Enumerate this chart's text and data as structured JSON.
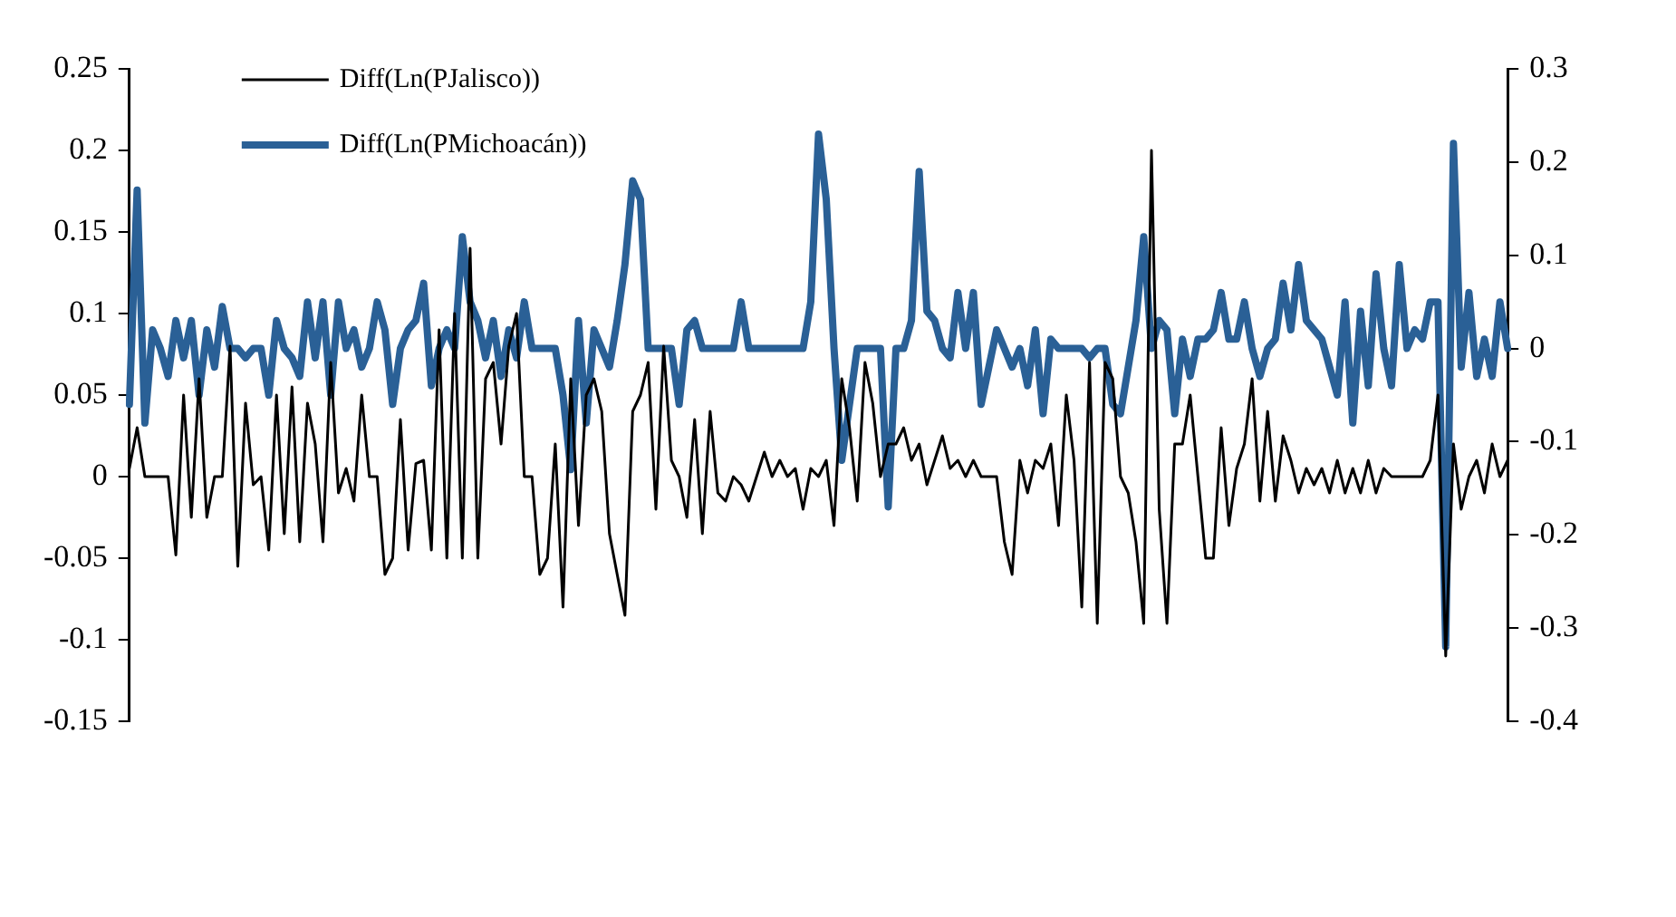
{
  "chart_data": {
    "type": "line",
    "categories": [
      null,
      null,
      null,
      null,
      null,
      null,
      null,
      null,
      null,
      null,
      null,
      null,
      null,
      null,
      null,
      null,
      null,
      null,
      null,
      null,
      null,
      null,
      null,
      null,
      null,
      null,
      null,
      null,
      null,
      null,
      null,
      null,
      null,
      null,
      null,
      null,
      null,
      null,
      null,
      null,
      null,
      null,
      null,
      null,
      null,
      null,
      null,
      null,
      null,
      null,
      null,
      null,
      null,
      null,
      null,
      null,
      null,
      null,
      null,
      null,
      null,
      null,
      null,
      null,
      null,
      null,
      null,
      null,
      null,
      null,
      null,
      null,
      null,
      null,
      null,
      null,
      null,
      null,
      null,
      null,
      null,
      null,
      null,
      null,
      null,
      null,
      null,
      null,
      null,
      null,
      null,
      null,
      null,
      null,
      null,
      null,
      null,
      null,
      null,
      null,
      null,
      null,
      null,
      null,
      null,
      null,
      null,
      null,
      null,
      null,
      null,
      null,
      null,
      null,
      null,
      null,
      null,
      null,
      null,
      null,
      null,
      null,
      null,
      null,
      null,
      null,
      null,
      null,
      null,
      null,
      null,
      null,
      null,
      null,
      null,
      null,
      null,
      null,
      null,
      null,
      null,
      null,
      null,
      null,
      null,
      null,
      null,
      null,
      null,
      null,
      null,
      null,
      null,
      null,
      null,
      null,
      null,
      null,
      null,
      null,
      null,
      null,
      null,
      null,
      null,
      null,
      null,
      null,
      null,
      null,
      null,
      null,
      null,
      null,
      null,
      null,
      null,
      null,
      null
    ],
    "series": [
      {
        "name": "Diff(Ln(PJalisco))",
        "color": "#000000",
        "axis": "y",
        "values": [
          0.005,
          0.03,
          0,
          0,
          0,
          0,
          -0.048,
          0.05,
          -0.025,
          0.06,
          -0.025,
          0,
          0,
          0.08,
          -0.055,
          0.045,
          -0.005,
          0,
          -0.045,
          0.05,
          -0.035,
          0.055,
          -0.04,
          0.045,
          0.02,
          -0.04,
          0.07,
          -0.01,
          0.005,
          -0.015,
          0.05,
          0,
          0,
          -0.06,
          -0.05,
          0.035,
          -0.045,
          0.008,
          0.01,
          -0.045,
          0.09,
          -0.05,
          0.1,
          -0.05,
          0.14,
          -0.05,
          0.06,
          0.07,
          0.02,
          0.08,
          0.1,
          0,
          0,
          -0.06,
          -0.05,
          0.02,
          -0.08,
          0.06,
          -0.03,
          0.05,
          0.06,
          0.04,
          -0.035,
          -0.06,
          -0.085,
          0.04,
          0.05,
          0.07,
          -0.02,
          0.08,
          0.01,
          0,
          -0.025,
          0.035,
          -0.035,
          0.04,
          -0.01,
          -0.015,
          0,
          -0.005,
          -0.015,
          0,
          0.015,
          0,
          0.01,
          0,
          0.005,
          -0.02,
          0.005,
          0,
          0.01,
          -0.03,
          0.06,
          0.03,
          -0.015,
          0.07,
          0.045,
          0,
          0.02,
          0.02,
          0.03,
          0.01,
          0.02,
          -0.005,
          0.01,
          0.025,
          0.005,
          0.01,
          0,
          0.01,
          0,
          0,
          0,
          -0.04,
          -0.06,
          0.01,
          -0.01,
          0.01,
          0.005,
          0.02,
          -0.03,
          0.05,
          0.01,
          -0.08,
          0.07,
          -0.09,
          0.07,
          0.06,
          0,
          -0.01,
          -0.04,
          -0.09,
          0.2,
          -0.02,
          -0.09,
          0.02,
          0.02,
          0.05,
          0,
          -0.05,
          -0.05,
          0.03,
          -0.03,
          0.005,
          0.02,
          0.06,
          -0.015,
          0.04,
          -0.015,
          0.025,
          0.01,
          -0.01,
          0.005,
          -0.005,
          0.005,
          -0.01,
          0.01,
          -0.01,
          0.005,
          -0.01,
          0.01,
          -0.01,
          0.005,
          0,
          0,
          0,
          0,
          0,
          0.01,
          0.05,
          -0.11,
          0.02,
          -0.02,
          0,
          0.01,
          -0.01,
          0.02,
          0,
          0.01
        ]
      },
      {
        "name": "Diff(Ln(PMichoacán))",
        "color": "#2a6096",
        "axis": "y2",
        "values": [
          -0.06,
          0.17,
          -0.08,
          0.02,
          0,
          -0.03,
          0.03,
          -0.01,
          0.03,
          -0.05,
          0.02,
          -0.02,
          0.045,
          0,
          0,
          -0.01,
          0,
          0,
          -0.05,
          0.03,
          0,
          -0.01,
          -0.03,
          0.05,
          -0.01,
          0.05,
          -0.05,
          0.05,
          0,
          0.02,
          -0.02,
          0,
          0.05,
          0.02,
          -0.06,
          0,
          0.02,
          0.03,
          0.07,
          -0.04,
          0,
          0.02,
          0,
          0.12,
          0.05,
          0.03,
          -0.01,
          0.03,
          -0.03,
          0.02,
          -0.01,
          0.05,
          0,
          0,
          0,
          0,
          -0.05,
          -0.13,
          0.03,
          -0.08,
          0.02,
          0,
          -0.02,
          0.03,
          0.09,
          0.18,
          0.16,
          0,
          0,
          0,
          0,
          -0.06,
          0.02,
          0.03,
          0,
          0,
          0,
          0,
          0,
          0.05,
          0,
          0,
          0,
          0,
          0,
          0,
          0,
          0,
          0.05,
          0.23,
          0.16,
          0,
          -0.12,
          -0.06,
          0,
          0,
          0,
          0,
          -0.17,
          0,
          0,
          0.03,
          0.19,
          0.04,
          0.03,
          0,
          -0.01,
          0.06,
          0,
          0.06,
          -0.06,
          -0.02,
          0.02,
          0,
          -0.02,
          0,
          -0.04,
          0.02,
          -0.07,
          0.01,
          0,
          0,
          0,
          0,
          -0.01,
          0,
          0,
          -0.06,
          -0.07,
          -0.02,
          0.03,
          0.12,
          0,
          0.03,
          0.02,
          -0.07,
          0.01,
          -0.03,
          0.01,
          0.01,
          0.02,
          0.06,
          0.01,
          0.01,
          0.05,
          0,
          -0.03,
          0,
          0.01,
          0.07,
          0.02,
          0.09,
          0.03,
          0.02,
          0.01,
          -0.02,
          -0.05,
          0.05,
          -0.08,
          0.04,
          -0.04,
          0.08,
          0,
          -0.04,
          0.09,
          0,
          0.02,
          0.01,
          0.05,
          0.05,
          -0.32,
          0.22,
          -0.02,
          0.06,
          -0.03,
          0.01,
          -0.03,
          0.05,
          0
        ]
      }
    ],
    "ylim": [
      -0.15,
      0.25
    ],
    "yticks": [
      -0.15,
      -0.1,
      -0.05,
      0,
      0.05,
      0.1,
      0.15,
      0.2,
      0.25
    ],
    "y2lim": [
      -0.4,
      0.3
    ],
    "y2ticks": [
      -0.4,
      -0.3,
      -0.2,
      -0.1,
      0,
      0.1,
      0.2,
      0.3
    ],
    "tick_labels": "y",
    "grid": false,
    "legend": "top left",
    "marker": "none",
    "line_style": "solid"
  }
}
